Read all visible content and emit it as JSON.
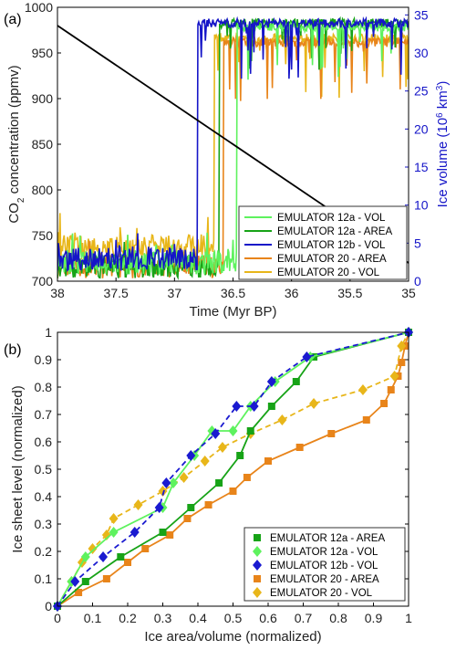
{
  "chart_data": [
    {
      "panel_label": "(a)",
      "type": "line",
      "xlabel": "Time (Myr BP)",
      "ylabel_left": "CO2 concentration (ppmv)",
      "ylabel_right": "Ice volume (10^6 km^3)",
      "xlim": [
        38,
        35
      ],
      "x_reversed": true,
      "ylim_left": [
        700,
        1000
      ],
      "ylim_right": [
        0,
        36
      ],
      "xticks": [
        "38",
        "37.5",
        "37",
        "36.5",
        "36",
        "35.5",
        "35"
      ],
      "yticks_left": [
        "700",
        "750",
        "800",
        "850",
        "900",
        "950",
        "1000"
      ],
      "yticks_right": [
        "0",
        "5",
        "10",
        "15",
        "20",
        "25",
        "30",
        "35"
      ],
      "co2_line": {
        "color": "#000000",
        "x": [
          38,
          35
        ],
        "y": [
          980,
          720
        ]
      },
      "legend_position": "bottom-right",
      "series": [
        {
          "name": "EMULATOR 12a - VOL",
          "color": "#5ef25e",
          "transition_time": 36.47,
          "low_ice": 2.0,
          "high_ice": 34.0
        },
        {
          "name": "EMULATOR 12a - AREA",
          "color": "#17a317",
          "transition_time": 36.62,
          "low_ice": 1.5,
          "high_ice": 34.5
        },
        {
          "name": "EMULATOR 12b - VOL",
          "color": "#1515c8",
          "transition_time": 36.8,
          "low_ice": 2.5,
          "high_ice": 34.5
        },
        {
          "name": "EMULATOR 20  - AREA",
          "color": "#e8841a",
          "transition_time": 36.58,
          "low_ice": 1.5,
          "high_ice": 32.0
        },
        {
          "name": "EMULATOR 20  - VOL",
          "color": "#e8b61a",
          "transition_time": 36.66,
          "low_ice": 4.0,
          "high_ice": 32.5
        }
      ]
    },
    {
      "panel_label": "(b)",
      "type": "line",
      "xlabel": "Ice area/volume (normalized)",
      "ylabel": "Ice sheet level (normalized)",
      "xlim": [
        0,
        1
      ],
      "ylim": [
        0,
        1
      ],
      "xticks": [
        "0",
        "0.1",
        "0.2",
        "0.3",
        "0.4",
        "0.5",
        "0.6",
        "0.7",
        "0.8",
        "0.9",
        "1"
      ],
      "yticks": [
        "0",
        "0.1",
        "0.2",
        "0.3",
        "0.4",
        "0.5",
        "0.6",
        "0.7",
        "0.8",
        "0.9",
        "1"
      ],
      "legend_position": "bottom-right",
      "series": [
        {
          "name": "EMULATOR 12a - AREA",
          "color": "#17a317",
          "marker": "square",
          "dash": false,
          "x": [
            0,
            0.08,
            0.18,
            0.3,
            0.38,
            0.46,
            0.52,
            0.55,
            0.61,
            0.68,
            0.73,
            1.0
          ],
          "y": [
            0,
            0.09,
            0.18,
            0.27,
            0.36,
            0.45,
            0.55,
            0.64,
            0.73,
            0.82,
            0.91,
            1.0
          ]
        },
        {
          "name": "EMULATOR 12a - VOL",
          "color": "#5ef25e",
          "marker": "diamond",
          "dash": false,
          "x": [
            0,
            0.04,
            0.08,
            0.16,
            0.3,
            0.33,
            0.39,
            0.44,
            0.5,
            0.55,
            0.62,
            0.72,
            1.0
          ],
          "y": [
            0,
            0.09,
            0.18,
            0.27,
            0.36,
            0.45,
            0.55,
            0.64,
            0.64,
            0.73,
            0.82,
            0.91,
            1.0
          ]
        },
        {
          "name": "EMULATOR 12b - VOL",
          "color": "#1a1ad0",
          "marker": "diamond",
          "dash": true,
          "x": [
            0,
            0.05,
            0.13,
            0.22,
            0.29,
            0.31,
            0.38,
            0.45,
            0.51,
            0.56,
            0.61,
            0.71,
            1.0
          ],
          "y": [
            0,
            0.09,
            0.18,
            0.27,
            0.36,
            0.45,
            0.55,
            0.63,
            0.73,
            0.73,
            0.82,
            0.91,
            1.0
          ]
        },
        {
          "name": "EMULATOR 20  - AREA",
          "color": "#e8841a",
          "marker": "square",
          "dash": false,
          "x": [
            0,
            0.06,
            0.14,
            0.2,
            0.25,
            0.32,
            0.37,
            0.43,
            0.5,
            0.54,
            0.6,
            0.69,
            0.78,
            0.88,
            0.93,
            0.95,
            0.97,
            0.98,
            0.99,
            1.0
          ],
          "y": [
            0,
            0.05,
            0.1,
            0.16,
            0.21,
            0.26,
            0.32,
            0.37,
            0.42,
            0.47,
            0.53,
            0.58,
            0.63,
            0.68,
            0.74,
            0.79,
            0.84,
            0.89,
            0.95,
            1.0
          ]
        },
        {
          "name": "EMULATOR 20  - VOL",
          "color": "#e8b61a",
          "marker": "diamond",
          "dash": true,
          "x": [
            0,
            0.04,
            0.07,
            0.1,
            0.14,
            0.16,
            0.23,
            0.3,
            0.36,
            0.42,
            0.47,
            0.55,
            0.64,
            0.73,
            0.87,
            0.96,
            0.98,
            1.0
          ],
          "y": [
            0,
            0.09,
            0.16,
            0.21,
            0.26,
            0.32,
            0.37,
            0.42,
            0.47,
            0.53,
            0.58,
            0.63,
            0.68,
            0.74,
            0.79,
            0.84,
            0.95,
            1.0
          ]
        }
      ]
    }
  ]
}
